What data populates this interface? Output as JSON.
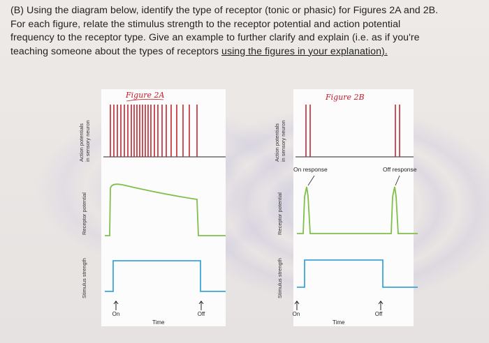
{
  "question": {
    "line1": "(B) Using the diagram below, identify the type of receptor (tonic or phasic) for Figures 2A and 2B.",
    "line2": "For each figure, relate the stimulus strength to the receptor potential and action potential",
    "line3": "frequency to the receptor type. Give an example to further clarify and explain (i.e. as if you're",
    "line4_pre": "teaching someone about the types of receptors ",
    "line4_ul": "using the figures in your explanation)."
  },
  "figure_a": {
    "title": "Figure 2A",
    "ylabel_ap_1": "Action potentials",
    "ylabel_ap_2": "in sensory neuron",
    "ylabel_rp": "Receptor potential",
    "ylabel_ss": "Stimulus strength",
    "on_label": "On",
    "off_label": "Off",
    "time_label": "Time"
  },
  "figure_b": {
    "title": "Figure 2B",
    "ylabel_ap_1": "Action potentials",
    "ylabel_ap_2": "in sensory neuron",
    "ylabel_rp": "Receptor potential",
    "ylabel_ss": "Stimulus strength",
    "on_response": "On response",
    "off_response": "Off response",
    "on_label": "On",
    "off_label": "Off",
    "time_label": "Time"
  },
  "colors": {
    "spike": "#c0262f",
    "receptor": "#7fbf4a",
    "stimulus": "#3aa6d8",
    "axis": "#222222"
  }
}
